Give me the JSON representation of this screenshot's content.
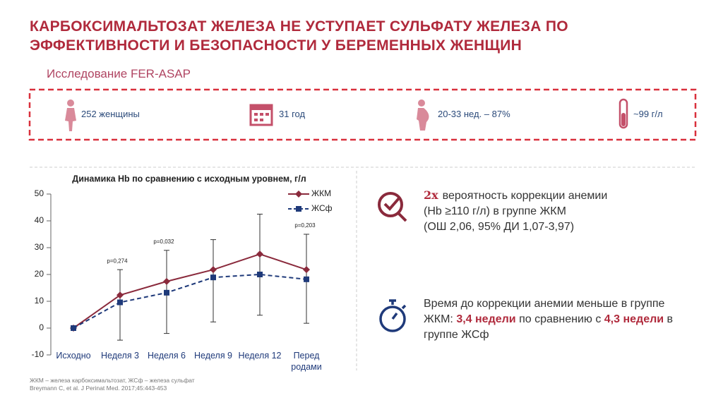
{
  "header": {
    "title_lines": [
      "КАРБОКСИМАЛЬТОЗАТ ЖЕЛЕЗА НЕ УСТУПАЕТ СУЛЬФАТУ ЖЕЛЕЗА ПО",
      "ЭФФЕКТИВНОСТИ И БЕЗОПАСНОСТИ У БЕРЕМЕННЫХ ЖЕНЩИН"
    ],
    "subtitle": "Исследование FER-ASAP"
  },
  "stats": [
    "252 женщины",
    "31 год",
    "20-33 нед. – 87%",
    "~99 г/л"
  ],
  "chart_data": {
    "type": "line",
    "title": "Динамика Hb по сравнению с исходным уровнем, г/л",
    "categories": [
      "Исходно",
      "Неделя 3",
      "Неделя 6",
      "Неделя 9",
      "Неделя 12",
      "Перед родами"
    ],
    "series": [
      {
        "name": "ЖКМ",
        "color": "#8a2a3c",
        "values": [
          0,
          12.3,
          17.4,
          21.8,
          27.6,
          21.8
        ]
      },
      {
        "name": "ЖСф",
        "color": "#1f3a7a",
        "values": [
          0,
          9.6,
          13.2,
          18.9,
          20,
          18.2
        ]
      }
    ],
    "error_low": [
      null,
      -4.5,
      -2,
      2.3,
      4.8,
      1.8
    ],
    "error_high": [
      null,
      21.8,
      29,
      33,
      42.5,
      35
    ],
    "p_values": [
      null,
      "p=0,274",
      "p=0,032",
      null,
      null,
      "p=0,203"
    ],
    "ylim": [
      -10,
      50
    ],
    "yticks": [
      -10,
      0,
      10,
      20,
      30,
      40,
      50
    ]
  },
  "findings": {
    "first": {
      "badge": "2x",
      "lines": [
        "вероятность коррекции анемии",
        "(Hb ≥110 г/л) в группе ЖКМ",
        "(ОШ 2,06, 95% ДИ 1,07-3,97)"
      ]
    },
    "second": {
      "parts": [
        "Время до коррекции анемии меньше в группе ЖКМ: ",
        "3,4 недели",
        " по сравнению с ",
        "4,3 недели",
        " в группе ЖСф"
      ]
    }
  },
  "footnote": [
    "ЖКМ – железа карбоксимальтозат, ЖСф – железа сульфат",
    "Breymann C, et al. J Perinat Med. 2017;45:443-453"
  ]
}
